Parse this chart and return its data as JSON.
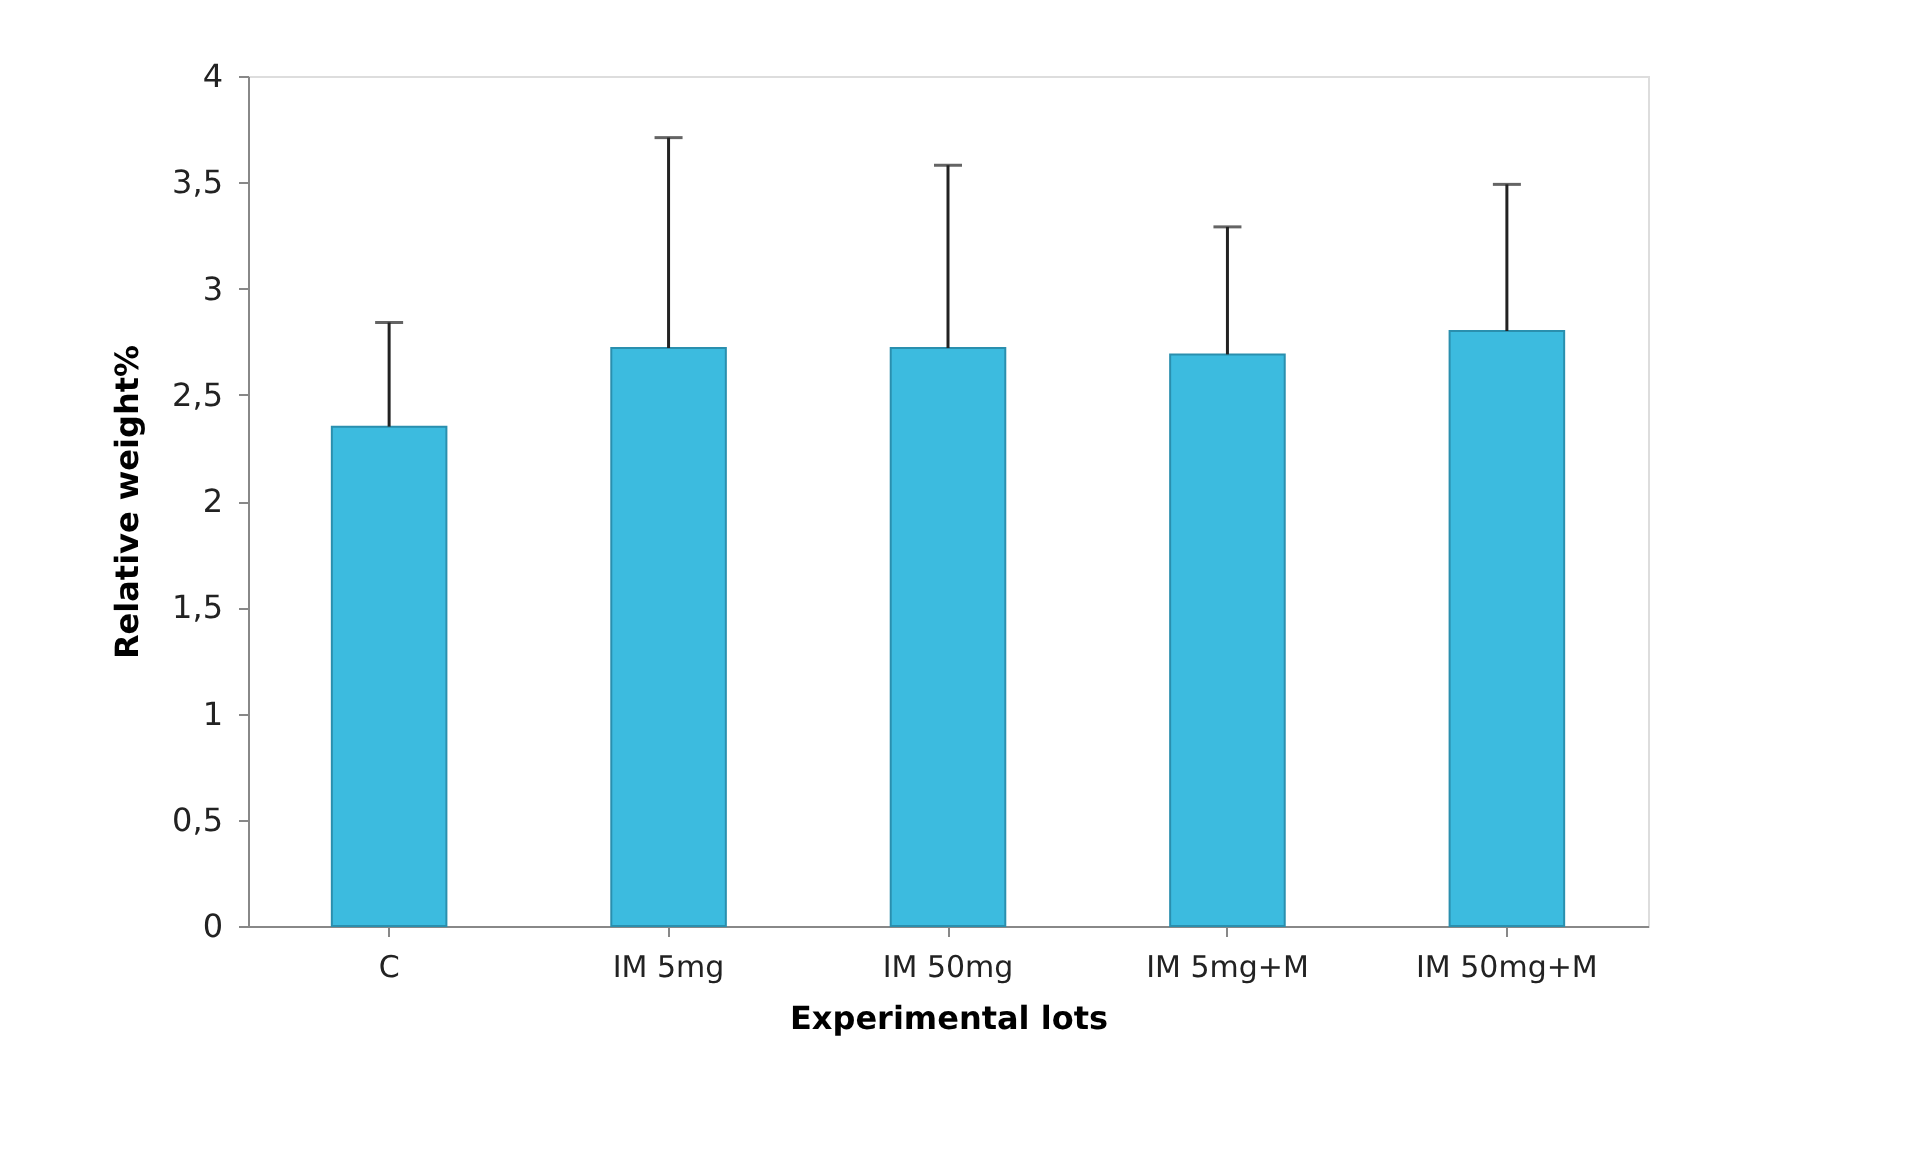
{
  "chart_data": {
    "type": "bar",
    "xlabel": "Experimental lots",
    "ylabel": "Relative weight%",
    "categories": [
      "C",
      "IM 5mg",
      "IM 50mg",
      "IM 5mg+M",
      "IM 50mg+M"
    ],
    "series": [
      {
        "color": "#3cbbdf",
        "values": [
          2.35,
          2.72,
          2.72,
          2.69,
          2.8
        ],
        "errors": [
          [
            2.35,
            2.84
          ],
          [
            2.72,
            3.71
          ],
          [
            2.72,
            3.58
          ],
          [
            2.69,
            3.29
          ],
          [
            2.8,
            3.49
          ]
        ]
      }
    ],
    "ylim": [
      0,
      4
    ],
    "yticks": [
      0,
      {
        "value": 0.5,
        "label": "0,5"
      },
      1,
      {
        "value": 1.5,
        "label": "1,5"
      },
      2,
      {
        "value": 2.5,
        "label": "2,5"
      },
      3,
      {
        "value": 3.5,
        "label": "3,5"
      },
      4
    ],
    "grid": false
  }
}
